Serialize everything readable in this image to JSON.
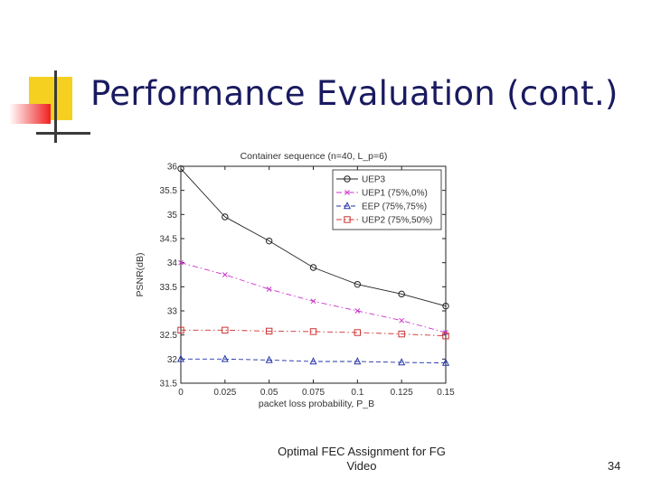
{
  "slide": {
    "title": "Performance Evaluation (cont.)",
    "footer_text": "Optimal FEC Assignment for FG Video",
    "page_number": "34",
    "accent_yellow": "#f5d020",
    "accent_red": "#f02020",
    "accent_blue": "#3333cc"
  },
  "chart_data": {
    "type": "line",
    "title": "Container sequence (n=40, L_p=6)",
    "xlabel": "packet loss probability, P_B",
    "ylabel": "PSNR(dB)",
    "xlim": [
      0,
      0.15
    ],
    "ylim": [
      31.5,
      36
    ],
    "xticks": [
      0,
      0.025,
      0.05,
      0.075,
      0.1,
      0.125,
      0.15
    ],
    "xtick_labels": [
      "0",
      "0.025",
      "0.05",
      "0.075",
      "0.1",
      "0.125",
      "0.15"
    ],
    "yticks": [
      31.5,
      32,
      32.5,
      33,
      33.5,
      34,
      34.5,
      35,
      35.5,
      36
    ],
    "ytick_labels": [
      "31.5",
      "32",
      "32.5",
      "33",
      "33.5",
      "34",
      "34.5",
      "35",
      "35.5",
      "36"
    ],
    "grid": false,
    "legend_position": "top-right",
    "series": [
      {
        "name": "UEP3",
        "marker": "circle",
        "dash": "solid",
        "color": "#222222",
        "values": [
          35.95,
          34.95,
          34.45,
          33.9,
          33.55,
          33.35,
          33.1
        ]
      },
      {
        "name": "UEP1 (75%,0%)",
        "marker": "x",
        "dash": "dashdot",
        "color": "#cc33cc",
        "values": [
          34.0,
          33.75,
          33.45,
          33.2,
          33.0,
          32.8,
          32.55
        ]
      },
      {
        "name": "EEP (75%,75%)",
        "marker": "triangle",
        "dash": "dashed",
        "color": "#2233aa",
        "values": [
          32.0,
          32.0,
          31.98,
          31.95,
          31.95,
          31.93,
          31.92
        ]
      },
      {
        "name": "UEP2 (75%,50%)",
        "marker": "square",
        "dash": "dashdot",
        "color": "#cc3333",
        "values": [
          32.6,
          32.6,
          32.58,
          32.57,
          32.55,
          32.52,
          32.48
        ]
      }
    ]
  }
}
